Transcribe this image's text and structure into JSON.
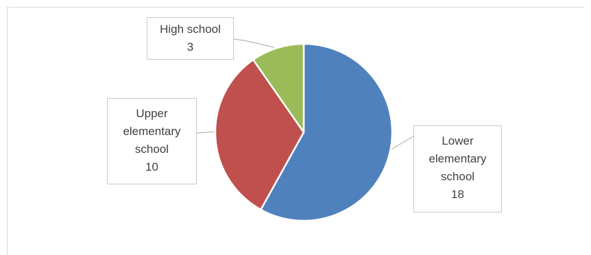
{
  "chart_data": {
    "type": "pie",
    "slices": [
      {
        "key": "lower",
        "label_lines": [
          "Lower",
          "elementary",
          "school"
        ],
        "value": 18,
        "color": "#4f81bd"
      },
      {
        "key": "upper",
        "label_lines": [
          "Upper",
          "elementary",
          "school"
        ],
        "value": 10,
        "color": "#c0504d"
      },
      {
        "key": "high",
        "label_lines": [
          "High school"
        ],
        "value": 3,
        "color": "#9bbb59"
      }
    ],
    "start_angle": "12 o'clock",
    "direction": "clockwise",
    "labels": "callout boxes with value",
    "slice_border_color": "#ffffff",
    "leader_line_color": "#a6a6a6"
  }
}
